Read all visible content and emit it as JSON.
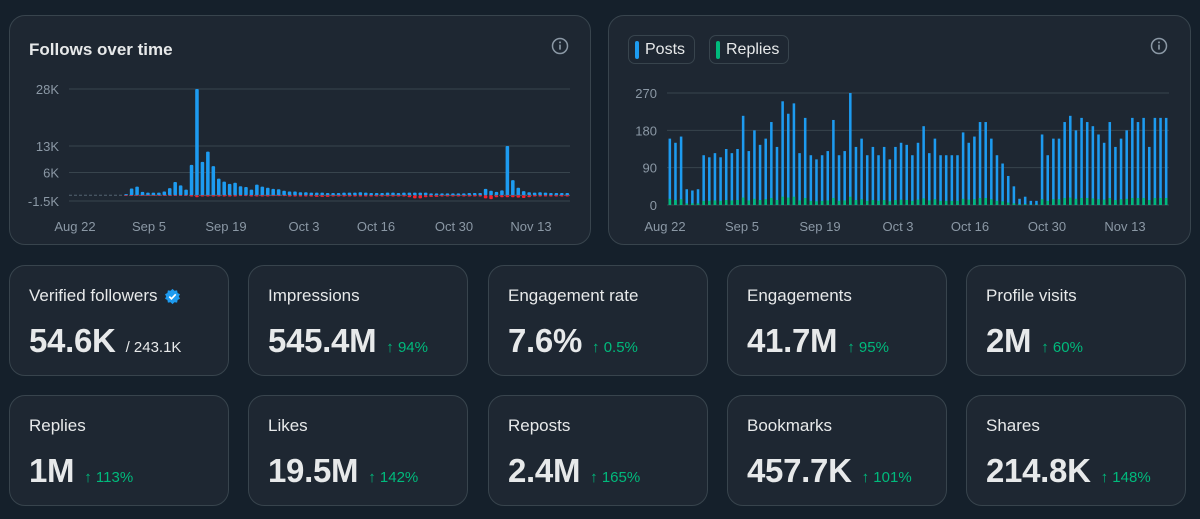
{
  "follows_chart": {
    "title": "Follows over time",
    "chart_data": {
      "type": "bar",
      "title": "Follows over time",
      "ylim": [
        -1500,
        28000
      ],
      "y_ticks": [
        {
          "label": "28K",
          "value": 28000
        },
        {
          "label": "13K",
          "value": 13000
        },
        {
          "label": "6K",
          "value": 6000
        },
        {
          "label": "-1.5K",
          "value": -1500
        }
      ],
      "x_ticks": [
        "Aug 22",
        "Sep 5",
        "Sep 19",
        "Oct 3",
        "Oct 16",
        "Oct 30",
        "Nov 13"
      ],
      "colors": {
        "gain": "#1d9bf0",
        "loss": "#f4212e"
      },
      "gains": [
        0,
        0,
        0,
        0,
        0,
        0,
        0,
        0,
        0,
        0,
        300,
        1800,
        2300,
        900,
        700,
        700,
        700,
        1000,
        1900,
        3500,
        2600,
        1500,
        8000,
        28000,
        8800,
        11500,
        7700,
        4400,
        3600,
        3000,
        3300,
        2400,
        2200,
        1500,
        2800,
        2300,
        2000,
        1700,
        1600,
        1200,
        1000,
        1000,
        800,
        800,
        700,
        700,
        700,
        600,
        600,
        600,
        700,
        700,
        700,
        800,
        700,
        600,
        600,
        600,
        700,
        700,
        600,
        700,
        700,
        700,
        700,
        700,
        500,
        500,
        500,
        500,
        500,
        500,
        500,
        600,
        600,
        600,
        1700,
        1200,
        900,
        1300,
        13000,
        4000,
        2000,
        1100,
        800,
        700,
        800,
        700,
        600,
        600,
        600,
        600
      ],
      "losses": [
        0,
        0,
        0,
        0,
        0,
        0,
        0,
        0,
        0,
        0,
        -150,
        -150,
        -150,
        -150,
        -150,
        -150,
        -150,
        -150,
        -150,
        -150,
        -150,
        -150,
        -300,
        -500,
        -300,
        -300,
        -300,
        -300,
        -300,
        -300,
        -300,
        -200,
        -200,
        -300,
        -300,
        -300,
        -300,
        -200,
        -200,
        -200,
        -300,
        -300,
        -300,
        -300,
        -300,
        -400,
        -400,
        -400,
        -300,
        -300,
        -300,
        -300,
        -300,
        -300,
        -300,
        -300,
        -300,
        -300,
        -300,
        -300,
        -300,
        -300,
        -500,
        -800,
        -800,
        -500,
        -400,
        -400,
        -300,
        -300,
        -300,
        -300,
        -300,
        -300,
        -300,
        -300,
        -800,
        -1000,
        -500,
        -500,
        -500,
        -500,
        -600,
        -700,
        -500,
        -300,
        -300,
        -300,
        -300,
        -300,
        -300,
        -300
      ]
    }
  },
  "posts_chart": {
    "legend": [
      {
        "name": "Posts",
        "color": "#1d9bf0"
      },
      {
        "name": "Replies",
        "color": "#00ba7c"
      }
    ],
    "chart_data": {
      "type": "bar",
      "ylim": [
        0,
        270
      ],
      "y_ticks": [
        {
          "label": "270",
          "value": 270
        },
        {
          "label": "180",
          "value": 180
        },
        {
          "label": "90",
          "value": 90
        },
        {
          "label": "0",
          "value": 0
        }
      ],
      "x_ticks": [
        "Aug 22",
        "Sep 5",
        "Sep 19",
        "Oct 3",
        "Oct 16",
        "Oct 30",
        "Nov 13"
      ],
      "series": [
        {
          "name": "Posts",
          "values": [
            160,
            150,
            165,
            38,
            35,
            38,
            120,
            115,
            125,
            115,
            135,
            125,
            135,
            215,
            130,
            180,
            145,
            160,
            200,
            140,
            250,
            220,
            245,
            125,
            210,
            120,
            110,
            120,
            130,
            205,
            120,
            130,
            270,
            140,
            160,
            120,
            140,
            120,
            140,
            110,
            140,
            150,
            145,
            120,
            150,
            190,
            125,
            160,
            120,
            120,
            120,
            120,
            175,
            150,
            165,
            200,
            200,
            160,
            120,
            100,
            70,
            45,
            15,
            20,
            10,
            10,
            170,
            120,
            160,
            160,
            200,
            215,
            180,
            210,
            200,
            190,
            170,
            150,
            200,
            140,
            160,
            180,
            210,
            200,
            210,
            140,
            210,
            210,
            210
          ]
        },
        {
          "name": "Replies",
          "values": [
            15,
            12,
            14,
            4,
            4,
            4,
            10,
            10,
            11,
            10,
            12,
            11,
            12,
            18,
            11,
            15,
            12,
            14,
            17,
            12,
            20,
            18,
            20,
            11,
            17,
            10,
            9,
            10,
            11,
            17,
            10,
            11,
            20,
            12,
            14,
            10,
            12,
            10,
            12,
            9,
            12,
            13,
            12,
            10,
            13,
            16,
            11,
            14,
            10,
            10,
            10,
            10,
            15,
            13,
            14,
            17,
            17,
            14,
            10,
            9,
            6,
            4,
            2,
            2,
            1,
            1,
            14,
            10,
            14,
            14,
            17,
            18,
            15,
            17,
            17,
            16,
            14,
            13,
            17,
            12,
            14,
            15,
            17,
            17,
            17,
            12,
            17,
            17,
            17
          ]
        }
      ]
    }
  },
  "metrics": [
    {
      "label": "Verified followers",
      "value": "54.6K",
      "sub": "/ 243.1K",
      "change": "",
      "verified": true
    },
    {
      "label": "Impressions",
      "value": "545.4M",
      "sub": "",
      "change": "↑ 94%",
      "verified": false
    },
    {
      "label": "Engagement rate",
      "value": "7.6%",
      "sub": "",
      "change": "↑ 0.5%",
      "verified": false
    },
    {
      "label": "Engagements",
      "value": "41.7M",
      "sub": "",
      "change": "↑ 95%",
      "verified": false
    },
    {
      "label": "Profile visits",
      "value": "2M",
      "sub": "",
      "change": "↑ 60%",
      "verified": false
    },
    {
      "label": "Replies",
      "value": "1M",
      "sub": "",
      "change": "↑ 113%",
      "verified": false
    },
    {
      "label": "Likes",
      "value": "19.5M",
      "sub": "",
      "change": "↑ 142%",
      "verified": false
    },
    {
      "label": "Reposts",
      "value": "2.4M",
      "sub": "",
      "change": "↑ 165%",
      "verified": false
    },
    {
      "label": "Bookmarks",
      "value": "457.7K",
      "sub": "",
      "change": "↑ 101%",
      "verified": false
    },
    {
      "label": "Shares",
      "value": "214.8K",
      "sub": "",
      "change": "↑ 148%",
      "verified": false
    }
  ],
  "icons": {
    "info": "info-icon",
    "verified": "verified-badge-icon"
  }
}
